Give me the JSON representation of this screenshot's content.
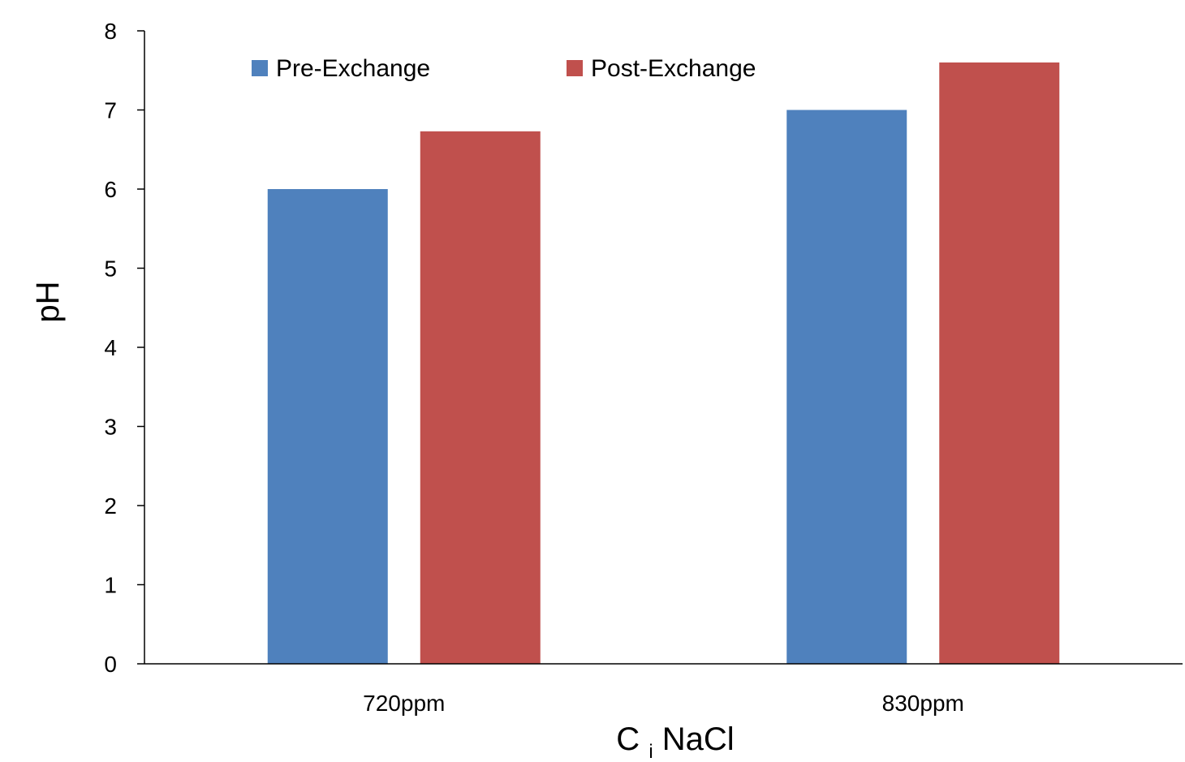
{
  "chart_data": {
    "type": "bar",
    "categories": [
      "720ppm",
      "830ppm"
    ],
    "series": [
      {
        "name": "Pre-Exchange",
        "color": "#4F81BD",
        "values": [
          6.0,
          7.0
        ]
      },
      {
        "name": "Post-Exchange",
        "color": "#C0504D",
        "values": [
          6.73,
          7.6
        ]
      }
    ],
    "yticks": [
      "0",
      "1",
      "2",
      "3",
      "4",
      "5",
      "6",
      "7",
      "8"
    ],
    "ylim": [
      0,
      8
    ],
    "xlabel": {
      "main": "C",
      "subscript": "i",
      "rest": " NaCl"
    },
    "ylabel": "pH",
    "legend_position": "top",
    "grid": false
  }
}
